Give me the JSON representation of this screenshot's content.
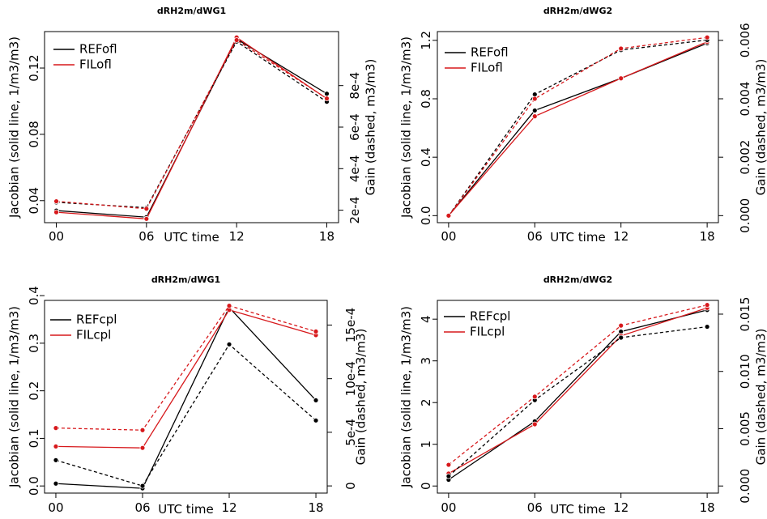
{
  "figure": {
    "background": "#ffffff"
  },
  "colors": {
    "REF": "#000000",
    "FIL": "#d7191c"
  },
  "chart_data": [
    {
      "type": "line",
      "title": "dRH2m/dWG1",
      "xlabel": "UTC time",
      "ylabel": "Jacobian (solid line, 1/m3/m3)",
      "y2label": "Gain (dashed, m3/m3)",
      "categories": [
        "00",
        "06",
        "12",
        "18"
      ],
      "ylim": [
        0.0267,
        0.142
      ],
      "yticks": [
        0.04,
        0.08,
        0.12
      ],
      "ytick_labels": [
        "0.04",
        "0.08",
        "0.12"
      ],
      "y2lim": [
        0.00014,
        0.00106
      ],
      "y2ticks": [
        0.0002,
        0.0004,
        0.0006,
        0.0008
      ],
      "y2tick_labels": [
        "2e-4",
        "4e-4",
        "6e-4",
        "8e-4"
      ],
      "legend_position": "top-left",
      "series": [
        {
          "name": "REFofl",
          "axis": "left",
          "style": "solid",
          "color": "#000000",
          "values": [
            0.034,
            0.03,
            0.1375,
            0.1045
          ]
        },
        {
          "name": "FILofl",
          "axis": "left",
          "style": "solid",
          "color": "#d7191c",
          "values": [
            0.033,
            0.029,
            0.1385,
            0.1015
          ]
        },
        {
          "name": "",
          "axis": "right",
          "style": "dashed",
          "color": "#000000",
          "values": [
            0.000238,
            0.000212,
            0.001012,
            0.000722
          ]
        },
        {
          "name": "",
          "axis": "right",
          "style": "dashed",
          "color": "#d7191c",
          "values": [
            0.000243,
            0.000207,
            0.001019,
            0.000738
          ]
        }
      ]
    },
    {
      "type": "line",
      "title": "dRH2m/dWG2",
      "xlabel": "UTC time",
      "ylabel": "Jacobian (solid line, 1/m3/m3)",
      "y2label": "Gain (dashed, m3/m3)",
      "categories": [
        "00",
        "06",
        "12",
        "18"
      ],
      "ylim": [
        -0.048,
        1.26
      ],
      "yticks": [
        0.0,
        0.4,
        0.8,
        1.2
      ],
      "ytick_labels": [
        "0.0",
        "0.4",
        "0.8",
        "1.2"
      ],
      "y2lim": [
        -0.00024,
        0.0063
      ],
      "y2ticks": [
        0.0,
        0.002,
        0.004,
        0.006
      ],
      "y2tick_labels": [
        "0.000",
        "0.002",
        "0.004",
        "0.006"
      ],
      "legend_position": "top-left",
      "series": [
        {
          "name": "REFofl",
          "axis": "left",
          "style": "solid",
          "color": "#000000",
          "values": [
            0.0,
            0.72,
            0.94,
            1.18
          ]
        },
        {
          "name": "FILofl",
          "axis": "left",
          "style": "solid",
          "color": "#d7191c",
          "values": [
            0.0,
            0.68,
            0.94,
            1.19
          ]
        },
        {
          "name": "",
          "axis": "right",
          "style": "dashed",
          "color": "#000000",
          "values": [
            0.0,
            0.00415,
            0.00567,
            0.00601
          ]
        },
        {
          "name": "",
          "axis": "right",
          "style": "dashed",
          "color": "#d7191c",
          "values": [
            0.0,
            0.004,
            0.00572,
            0.0061
          ]
        }
      ]
    },
    {
      "type": "line",
      "title": "dRH2m/dWG1",
      "xlabel": "UTC time",
      "ylabel": "Jacobian (solid line, 1/m3/m3)",
      "y2label": "Gain (dashed, m3/m3)",
      "categories": [
        "00",
        "06",
        "12",
        "18"
      ],
      "ylim": [
        -0.015,
        0.39
      ],
      "yticks": [
        0.0,
        0.1,
        0.2,
        0.3,
        0.4
      ],
      "ytick_labels": [
        "0.0",
        "0.1",
        "0.2",
        "0.3",
        "0.4"
      ],
      "y2lim": [
        -6.7e-05,
        0.00173
      ],
      "y2ticks": [
        0.0,
        0.0005,
        0.001,
        0.0015
      ],
      "y2tick_labels": [
        "0",
        "5e-4",
        "10e-4",
        "15e-4"
      ],
      "legend_position": "top-left",
      "series": [
        {
          "name": "REFcpl",
          "axis": "left",
          "style": "solid",
          "color": "#000000",
          "values": [
            0.005,
            -0.005,
            0.375,
            0.18
          ]
        },
        {
          "name": "FILcpl",
          "axis": "left",
          "style": "solid",
          "color": "#d7191c",
          "values": [
            0.083,
            0.08,
            0.37,
            0.317
          ]
        },
        {
          "name": "",
          "axis": "right",
          "style": "dashed",
          "color": "#000000",
          "values": [
            0.00024,
            0.0,
            0.00132,
            0.00061
          ]
        },
        {
          "name": "",
          "axis": "right",
          "style": "dashed",
          "color": "#d7191c",
          "values": [
            0.00054,
            0.00052,
            0.00168,
            0.00144
          ]
        }
      ]
    },
    {
      "type": "line",
      "title": "dRH2m/dWG2",
      "xlabel": "UTC time",
      "ylabel": "Jacobian (solid line, 1/m3/m3)",
      "y2label": "Gain (dashed, m3/m3)",
      "categories": [
        "00",
        "06",
        "12",
        "18"
      ],
      "ylim": [
        -0.17,
        4.45
      ],
      "yticks": [
        0,
        1,
        2,
        3,
        4
      ],
      "ytick_labels": [
        "0",
        "1",
        "2",
        "3",
        "4"
      ],
      "y2lim": [
        -0.00062,
        0.0162
      ],
      "y2ticks": [
        0.0,
        0.005,
        0.01,
        0.015
      ],
      "y2tick_labels": [
        "0.000",
        "0.005",
        "0.010",
        "0.015"
      ],
      "legend_position": "top-left",
      "series": [
        {
          "name": "REFcpl",
          "axis": "left",
          "style": "solid",
          "color": "#000000",
          "values": [
            0.15,
            1.55,
            3.7,
            4.22
          ]
        },
        {
          "name": "FILcpl",
          "axis": "left",
          "style": "solid",
          "color": "#d7191c",
          "values": [
            0.3,
            1.48,
            3.6,
            4.27
          ]
        },
        {
          "name": "",
          "axis": "right",
          "style": "dashed",
          "color": "#000000",
          "values": [
            0.00085,
            0.0075,
            0.01295,
            0.0139
          ]
        },
        {
          "name": "",
          "axis": "right",
          "style": "dashed",
          "color": "#d7191c",
          "values": [
            0.00185,
            0.0078,
            0.014,
            0.0158
          ]
        }
      ]
    }
  ]
}
